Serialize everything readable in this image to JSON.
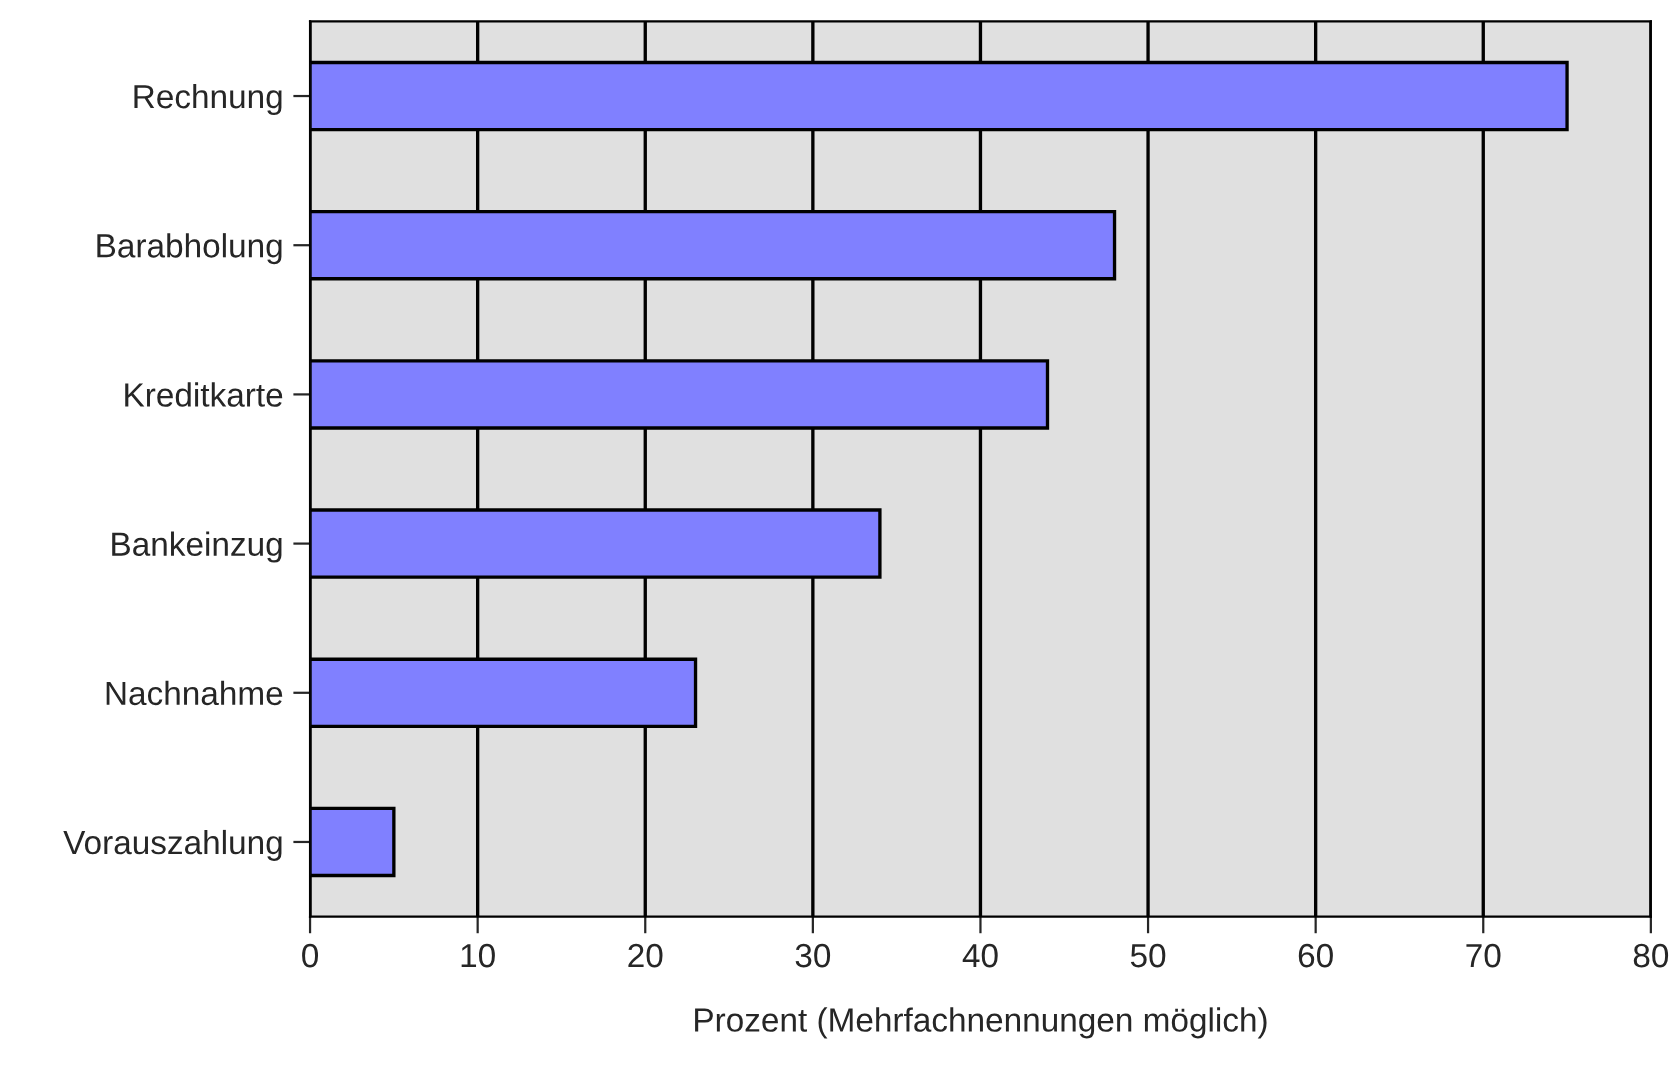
{
  "chart_data": {
    "type": "bar",
    "orientation": "horizontal",
    "xlabel": "Prozent (Mehrfachnennungen möglich)",
    "categories": [
      "Rechnung",
      "Barabholung",
      "Kreditkarte",
      "Bankeinzug",
      "Nachnahme",
      "Vorauszahlung"
    ],
    "values": [
      75,
      48,
      44,
      34,
      23,
      5
    ],
    "color": "#8080ff",
    "xlim": [
      0,
      80
    ],
    "xticks": [
      0,
      10,
      20,
      30,
      40,
      50,
      60,
      70,
      80
    ],
    "grid": "x",
    "legend": false
  }
}
